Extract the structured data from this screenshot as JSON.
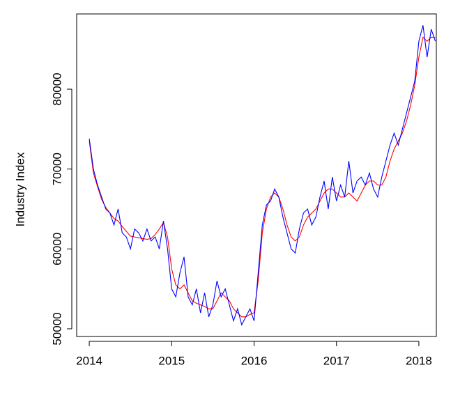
{
  "chart_data": {
    "type": "line",
    "y_label": "Industry Index",
    "x": [
      2014.0,
      2014.05,
      2014.1,
      2014.15,
      2014.2,
      2014.25,
      2014.3,
      2014.35,
      2014.4,
      2014.45,
      2014.5,
      2014.55,
      2014.6,
      2014.65,
      2014.7,
      2014.75,
      2014.8,
      2014.85,
      2014.9,
      2014.95,
      2015.0,
      2015.05,
      2015.1,
      2015.15,
      2015.2,
      2015.25,
      2015.3,
      2015.35,
      2015.4,
      2015.45,
      2015.5,
      2015.55,
      2015.6,
      2015.65,
      2015.7,
      2015.75,
      2015.8,
      2015.85,
      2015.9,
      2015.95,
      2016.0,
      2016.05,
      2016.1,
      2016.15,
      2016.2,
      2016.25,
      2016.3,
      2016.35,
      2016.4,
      2016.45,
      2016.5,
      2016.55,
      2016.6,
      2016.65,
      2016.7,
      2016.75,
      2016.8,
      2016.85,
      2016.9,
      2016.95,
      2017.0,
      2017.05,
      2017.1,
      2017.15,
      2017.2,
      2017.25,
      2017.3,
      2017.35,
      2017.4,
      2017.45,
      2017.5,
      2017.55,
      2017.6,
      2017.65,
      2017.7,
      2017.75,
      2017.8,
      2017.85,
      2017.9,
      2017.95,
      2018.0,
      2018.05,
      2018.1,
      2018.15,
      2018.2
    ],
    "series": [
      {
        "color": "#ff0000",
        "values": [
          73500,
          69500,
          67800,
          66200,
          65200,
          64500,
          63800,
          63500,
          62800,
          62200,
          61600,
          61500,
          61400,
          61300,
          61200,
          61300,
          61800,
          62500,
          63300,
          61500,
          57500,
          55500,
          55000,
          55500,
          54500,
          53500,
          53200,
          53000,
          52800,
          52500,
          52500,
          53500,
          54500,
          54000,
          53500,
          52500,
          52000,
          51500,
          51500,
          51800,
          52000,
          56000,
          62000,
          65000,
          66500,
          67000,
          66500,
          65000,
          63000,
          61500,
          61000,
          61500,
          63000,
          64000,
          64500,
          65000,
          66000,
          67000,
          67500,
          67500,
          67000,
          66500,
          66500,
          67000,
          66500,
          66000,
          67000,
          68000,
          68500,
          68500,
          68000,
          68000,
          69000,
          71000,
          72500,
          73500,
          74500,
          76000,
          78000,
          80500,
          84000,
          86500,
          86000,
          86500,
          86500
        ]
      },
      {
        "color": "#0000ff",
        "values": [
          73800,
          70000,
          68000,
          66500,
          65000,
          64500,
          63000,
          65000,
          62000,
          61500,
          60000,
          62500,
          62000,
          61000,
          62500,
          61000,
          61500,
          60000,
          63500,
          60000,
          55000,
          54000,
          57000,
          59000,
          54000,
          53000,
          55000,
          52000,
          54500,
          51500,
          53000,
          56000,
          54000,
          55000,
          53000,
          51000,
          52500,
          50500,
          51500,
          52500,
          51000,
          57000,
          63000,
          65500,
          66000,
          67500,
          66500,
          64000,
          62000,
          60000,
          59500,
          62500,
          64500,
          65000,
          63000,
          64000,
          66500,
          68500,
          65000,
          69000,
          66000,
          68000,
          66500,
          71000,
          67000,
          68500,
          69000,
          68000,
          69500,
          67500,
          66500,
          69000,
          71000,
          73000,
          74500,
          73000,
          75000,
          77000,
          79000,
          81000,
          86000,
          88000,
          84000,
          87500,
          86000
        ]
      }
    ],
    "xlim": [
      2013.847,
      2018.212
    ],
    "xticks": [
      2014,
      2015,
      2016,
      2017,
      2018
    ],
    "ylim": [
      49041,
      89418
    ],
    "yticks": [
      50000,
      60000,
      70000,
      80000
    ]
  }
}
